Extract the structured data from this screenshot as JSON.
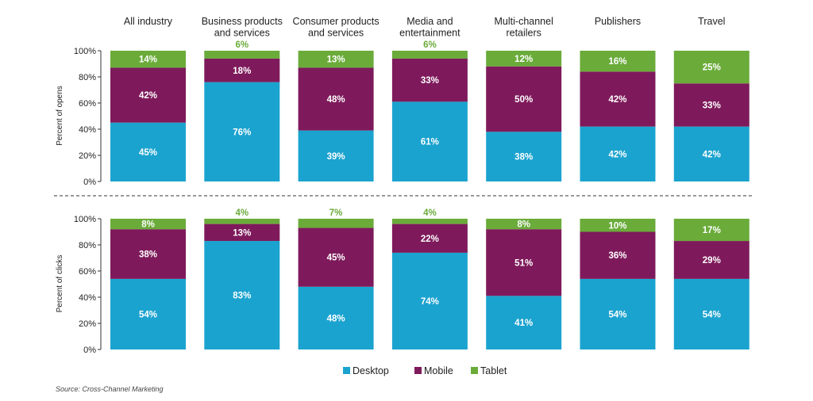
{
  "chart_data": {
    "type": "bar",
    "stacked": true,
    "source": "Source: Cross-Channel Marketing",
    "categories": [
      [
        "All industry"
      ],
      [
        "Business products",
        "and services"
      ],
      [
        "Consumer products",
        "and services"
      ],
      [
        "Media and",
        "entertainment"
      ],
      [
        "Multi-channel",
        "retailers"
      ],
      [
        "Publishers"
      ],
      [
        "Travel"
      ]
    ],
    "legend": [
      {
        "name": "Desktop",
        "color": "#1ba3cf"
      },
      {
        "name": "Mobile",
        "color": "#7e1a5b"
      },
      {
        "name": "Tablet",
        "color": "#6aab3a"
      }
    ],
    "panels": [
      {
        "ylabel": "Percent of opens",
        "ylim": [
          0,
          100
        ],
        "yticks": [
          "0%",
          "20%",
          "40%",
          "60%",
          "80%",
          "100%"
        ],
        "series": [
          {
            "name": "Desktop",
            "values": [
              45,
              76,
              39,
              61,
              38,
              42,
              42
            ],
            "labels": [
              "45%",
              "76%",
              "39%",
              "61%",
              "38%",
              "42%",
              "42%"
            ]
          },
          {
            "name": "Mobile",
            "values": [
              42,
              18,
              48,
              33,
              50,
              42,
              33
            ],
            "labels": [
              "42%",
              "18%",
              "48%",
              "33%",
              "50%",
              "42%",
              "33%"
            ]
          },
          {
            "name": "Tablet",
            "values": [
              14,
              6,
              13,
              6,
              12,
              16,
              25
            ],
            "labels": [
              "14%",
              "6%",
              "13%",
              "6%",
              "12%",
              "16%",
              "25%"
            ]
          }
        ]
      },
      {
        "ylabel": "Percent of clicks",
        "ylim": [
          0,
          100
        ],
        "yticks": [
          "0%",
          "20%",
          "40%",
          "60%",
          "80%",
          "100%"
        ],
        "series": [
          {
            "name": "Desktop",
            "values": [
              54,
              83,
              48,
              74,
              41,
              54,
              54
            ],
            "labels": [
              "54%",
              "83%",
              "48%",
              "74%",
              "41%",
              "54%",
              "54%"
            ]
          },
          {
            "name": "Mobile",
            "values": [
              38,
              13,
              45,
              22,
              51,
              36,
              29
            ],
            "labels": [
              "38%",
              "13%",
              "45%",
              "22%",
              "51%",
              "36%",
              "29%"
            ]
          },
          {
            "name": "Tablet",
            "values": [
              8,
              4,
              7,
              4,
              8,
              10,
              17
            ],
            "labels": [
              "8%",
              "4%",
              "7%",
              "4%",
              "8%",
              "10%",
              "17%"
            ]
          }
        ]
      }
    ]
  }
}
